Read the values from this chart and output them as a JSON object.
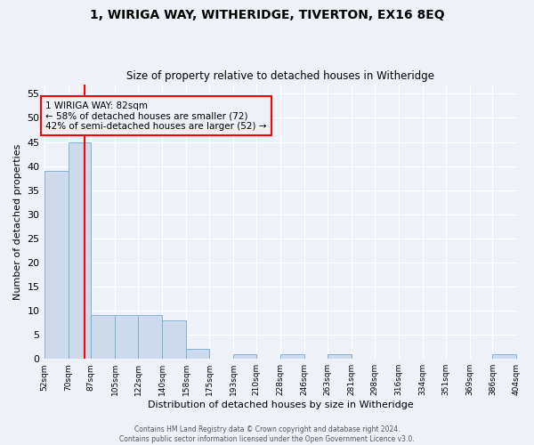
{
  "title": "1, WIRIGA WAY, WITHERIDGE, TIVERTON, EX16 8EQ",
  "subtitle": "Size of property relative to detached houses in Witheridge",
  "xlabel": "Distribution of detached houses by size in Witheridge",
  "ylabel": "Number of detached properties",
  "bar_color": "#ccdaeb",
  "bar_edge_color": "#7aaac8",
  "highlight_line_color": "red",
  "annotation_text": "1 WIRIGA WAY: 82sqm\n← 58% of detached houses are smaller (72)\n42% of semi-detached houses are larger (52) →",
  "annotation_box_color": "red",
  "property_size": 82,
  "bins": [
    52,
    70,
    87,
    105,
    122,
    140,
    158,
    175,
    193,
    210,
    228,
    246,
    263,
    281,
    298,
    316,
    334,
    351,
    369,
    386,
    404
  ],
  "bar_heights": [
    39,
    45,
    9,
    9,
    9,
    8,
    2,
    0,
    1,
    0,
    1,
    0,
    1,
    0,
    0,
    0,
    0,
    0,
    0,
    1
  ],
  "ylim": [
    0,
    57
  ],
  "yticks": [
    0,
    5,
    10,
    15,
    20,
    25,
    30,
    35,
    40,
    45,
    50,
    55
  ],
  "bg_color": "#eef2f8",
  "grid_color": "#ffffff",
  "footer_text": "Contains HM Land Registry data © Crown copyright and database right 2024.\nContains public sector information licensed under the Open Government Licence v3.0."
}
